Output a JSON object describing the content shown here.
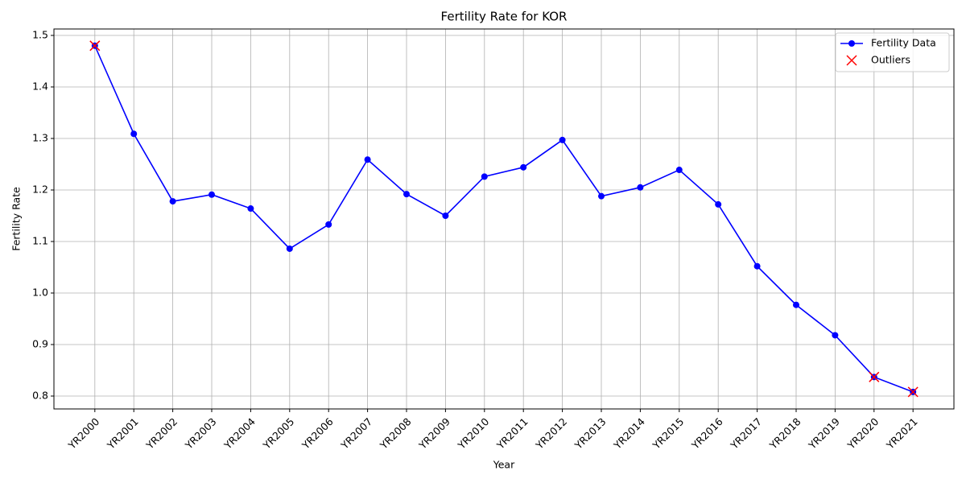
{
  "chart_data": {
    "type": "line",
    "title": "Fertility Rate for KOR",
    "x_label": "Year",
    "y_label": "Fertility Rate",
    "categories": [
      "YR2000",
      "YR2001",
      "YR2002",
      "YR2003",
      "YR2004",
      "YR2005",
      "YR2006",
      "YR2007",
      "YR2008",
      "YR2009",
      "YR2010",
      "YR2011",
      "YR2012",
      "YR2013",
      "YR2014",
      "YR2015",
      "YR2016",
      "YR2017",
      "YR2018",
      "YR2019",
      "YR2020",
      "YR2021"
    ],
    "series": [
      {
        "name": "Fertility Data",
        "color": "#0000ff",
        "marker": "o",
        "line": true,
        "values": [
          1.48,
          1.309,
          1.178,
          1.191,
          1.164,
          1.086,
          1.133,
          1.259,
          1.192,
          1.15,
          1.226,
          1.244,
          1.297,
          1.188,
          1.205,
          1.239,
          1.172,
          1.052,
          0.977,
          0.918,
          0.837,
          0.808
        ]
      },
      {
        "name": "Outliers",
        "color": "#ff0000",
        "marker": "x",
        "line": false,
        "values": [
          1.48,
          null,
          null,
          null,
          null,
          null,
          null,
          null,
          null,
          null,
          null,
          null,
          null,
          null,
          null,
          null,
          null,
          null,
          null,
          null,
          0.837,
          0.808
        ]
      }
    ],
    "ylim": [
      0.775,
      1.5125
    ],
    "yticks": [
      0.8,
      0.9,
      {
        "value": 1,
        "label": "1.0"
      },
      1.1,
      1.2,
      1.3,
      1.4,
      1.5
    ],
    "grid": true,
    "legend": "upper right"
  }
}
